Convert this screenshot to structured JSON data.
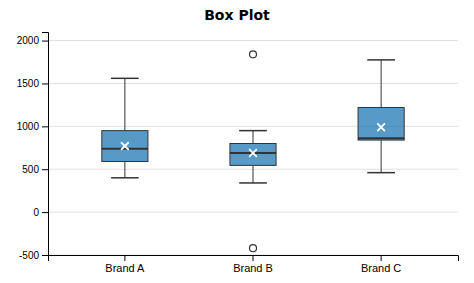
{
  "chart_data": {
    "type": "box",
    "title": "Box Plot",
    "categories": [
      "Brand A",
      "Brand B",
      "Brand C"
    ],
    "boxes": [
      {
        "q1": 590,
        "median": 740,
        "q3": 950,
        "whisker_low": 400,
        "whisker_high": 1560,
        "mean": 770,
        "outliers": []
      },
      {
        "q1": 545,
        "median": 690,
        "q3": 800,
        "whisker_low": 340,
        "whisker_high": 950,
        "mean": 690,
        "outliers": [
          1840,
          -420
        ]
      },
      {
        "q1": 840,
        "median": 860,
        "q3": 1220,
        "whisker_low": 460,
        "whisker_high": 1775,
        "mean": 990,
        "outliers": []
      }
    ],
    "ylim": [
      -500,
      2100
    ],
    "yticks": [
      -500,
      0,
      500,
      1000,
      1500,
      2000
    ],
    "grid": true
  }
}
